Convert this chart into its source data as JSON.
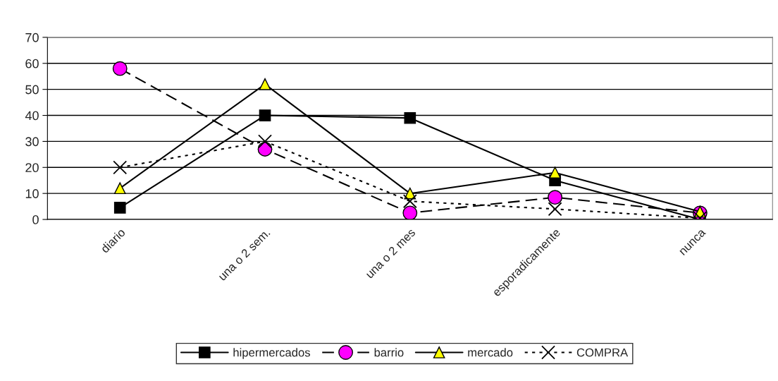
{
  "chart_data": {
    "type": "line",
    "categories": [
      "diario",
      "una o 2 sem.",
      "una o 2 mes",
      "esporadicamente",
      "nunca"
    ],
    "series": [
      {
        "name": "hipermercados",
        "color": "#000000",
        "marker": "square",
        "line_style": "solid",
        "values": [
          4.5,
          40,
          39,
          15,
          0
        ]
      },
      {
        "name": "barrio",
        "color": "#ff00ff",
        "marker": "circle",
        "line_style": "dashed",
        "values": [
          58,
          27,
          2.5,
          8.5,
          2.5
        ]
      },
      {
        "name": "mercado",
        "color": "#ffff00",
        "marker": "triangle",
        "line_style": "solid",
        "values": [
          12,
          52,
          10,
          18,
          3
        ]
      },
      {
        "name": "COMPRA",
        "color": "#000000",
        "marker": "cross",
        "line_style": "dotted",
        "values": [
          20,
          30,
          7,
          4,
          0.5
        ]
      }
    ],
    "ylim": [
      0,
      70
    ],
    "yticks": [
      0,
      10,
      20,
      30,
      40,
      50,
      60,
      70
    ],
    "grid": "y",
    "legend": "bottom"
  }
}
